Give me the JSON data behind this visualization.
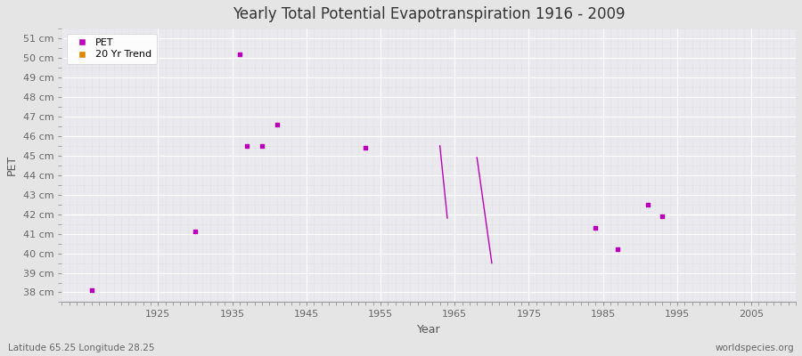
{
  "title": "Yearly Total Potential Evapotranspiration 1916 - 2009",
  "xlabel": "Year",
  "ylabel": "PET",
  "footnote_left": "Latitude 65.25 Longitude 28.25",
  "footnote_right": "worldspecies.org",
  "ylim": [
    37.5,
    51.5
  ],
  "xlim": [
    1912,
    2011
  ],
  "yticks": [
    38,
    39,
    40,
    41,
    42,
    43,
    44,
    45,
    46,
    47,
    48,
    49,
    50,
    51
  ],
  "xticks": [
    1925,
    1935,
    1945,
    1955,
    1965,
    1975,
    1985,
    1995,
    2005
  ],
  "pet_data": [
    [
      1916,
      38.1
    ],
    [
      1930,
      41.1
    ],
    [
      1937,
      45.5
    ],
    [
      1939,
      45.5
    ],
    [
      1941,
      46.6
    ],
    [
      1936,
      50.2
    ],
    [
      1953,
      45.4
    ],
    [
      1984,
      41.3
    ],
    [
      1987,
      40.2
    ],
    [
      1991,
      42.5
    ],
    [
      1993,
      41.9
    ]
  ],
  "trend_segments": [
    [
      [
        1963,
        45.5
      ],
      [
        1964,
        41.8
      ]
    ],
    [
      [
        1968,
        44.9
      ],
      [
        1970,
        39.5
      ]
    ]
  ],
  "pet_color": "#bb00bb",
  "trend_color": "#bb00bb",
  "bg_color": "#e5e5e5",
  "plot_bg_color": "#eaeaee",
  "grid_major_color": "#ffffff",
  "grid_minor_color": "#d8d8d8",
  "legend_pet_color": "#bb00bb",
  "legend_trend_color": "#dd8800",
  "title_color": "#333333",
  "tick_color": "#666666",
  "label_color": "#555555"
}
